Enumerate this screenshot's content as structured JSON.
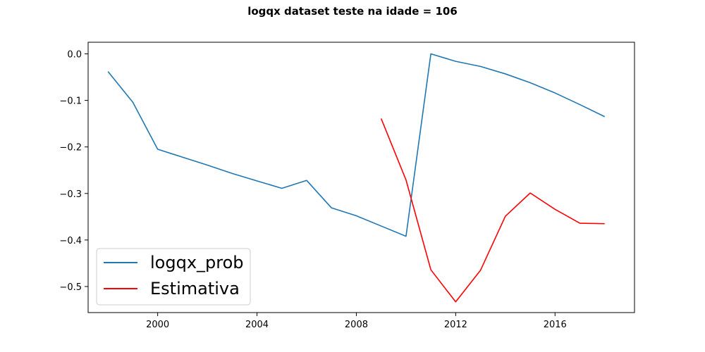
{
  "chart_data": {
    "type": "line",
    "title": "logqx dataset teste na idade = 106",
    "xlabel": "",
    "ylabel": "",
    "xlim": [
      1997.2,
      2019.2
    ],
    "ylim": [
      -0.556,
      0.025
    ],
    "xticks": [
      2000,
      2004,
      2008,
      2012,
      2016
    ],
    "yticks": [
      0.0,
      -0.1,
      -0.2,
      -0.3,
      -0.4,
      -0.5
    ],
    "ytick_labels": [
      "0.0",
      "−0.1",
      "−0.2",
      "−0.3",
      "−0.4",
      "−0.5"
    ],
    "grid": false,
    "legend_position": "lower-left",
    "series": [
      {
        "name": "logqx_prob",
        "color": "#1f77b4",
        "x": [
          1998,
          1999,
          2000,
          2001,
          2002,
          2003,
          2004,
          2005,
          2006,
          2007,
          2008,
          2009,
          2010,
          2011,
          2012,
          2013,
          2014,
          2015,
          2016,
          2017,
          2018
        ],
        "y": [
          -0.038,
          -0.104,
          -0.205,
          -0.222,
          -0.239,
          -0.257,
          -0.273,
          -0.289,
          -0.272,
          -0.331,
          -0.348,
          -0.37,
          -0.392,
          0.0,
          -0.016,
          -0.027,
          -0.043,
          -0.062,
          -0.084,
          -0.109,
          -0.135
        ]
      },
      {
        "name": "Estimativa",
        "color": "#ff0000",
        "x": [
          2009,
          2010,
          2011,
          2012,
          2013,
          2014,
          2015,
          2016,
          2017,
          2018
        ],
        "y": [
          -0.139,
          -0.271,
          -0.464,
          -0.533,
          -0.465,
          -0.349,
          -0.299,
          -0.334,
          -0.364,
          -0.365
        ]
      }
    ]
  }
}
